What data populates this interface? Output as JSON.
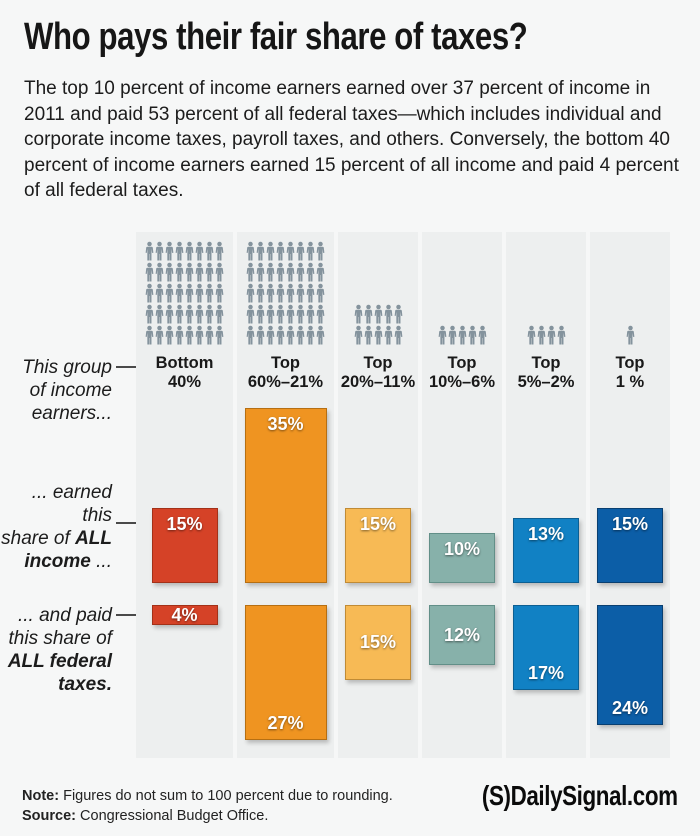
{
  "header": {
    "title": "Who pays their fair share of taxes?",
    "intro": "The top 10 percent of income earners earned over 37 percent of income in 2011 and paid 53 percent of all federal taxes—which includes individual and corporate income taxes, payroll taxes, and others. Conversely, the bottom 40 percent of income earners earned 15 percent of all income and paid 4 percent of all federal taxes."
  },
  "annotations": {
    "group": {
      "line1": "This group",
      "line2": "of income",
      "line3": "earners..."
    },
    "earned": {
      "line1": "... earned this",
      "line2_pre": "share of ",
      "line2_bold": "ALL",
      "line3_bold": "income",
      "line3_post": " ..."
    },
    "paid": {
      "line1": "... and paid",
      "line2": "this share of",
      "line3_bold": "ALL federal",
      "line4_bold": "taxes."
    }
  },
  "chart_data": {
    "type": "bar",
    "title": "Share of income earned vs. share of federal taxes paid, by income group",
    "categories": [
      "Bottom 40%",
      "Top 60%–21%",
      "Top 20%–11%",
      "Top 10%–6%",
      "Top 5%–2%",
      "Top 1 %"
    ],
    "series": [
      {
        "name": "Earned this share of ALL income",
        "values": [
          15,
          35,
          15,
          10,
          13,
          15
        ]
      },
      {
        "name": "Paid this share of ALL federal taxes",
        "values": [
          4,
          27,
          15,
          12,
          17,
          24
        ]
      }
    ],
    "people_counts": [
      40,
      40,
      10,
      5,
      4,
      1
    ],
    "people_color": "#84939d",
    "columns": [
      {
        "group": "Bottom",
        "range": "40%",
        "people": 40,
        "rows": [
          8,
          8,
          8,
          8,
          8
        ],
        "income_pct": 15,
        "income_label": "15%",
        "income_label_pos": "top",
        "tax_pct": 4,
        "tax_label": "4%",
        "tax_label_pos": "center",
        "fill": "#d54227",
        "border": "#a33118"
      },
      {
        "group": "Top",
        "range": "60%–21%",
        "people": 40,
        "rows": [
          8,
          8,
          8,
          8,
          8
        ],
        "income_pct": 35,
        "income_label": "35%",
        "income_label_pos": "top",
        "tax_pct": 27,
        "tax_label": "27%",
        "tax_label_pos": "bottom",
        "fill": "#ef9421",
        "border": "#b66f12"
      },
      {
        "group": "Top",
        "range": "20%–11%",
        "people": 10,
        "rows": [
          5,
          5
        ],
        "income_pct": 15,
        "income_label": "15%",
        "income_label_pos": "top",
        "tax_pct": 15,
        "tax_label": "15%",
        "tax_label_pos": "center",
        "fill": "#f7ba55",
        "border": "#c08b35"
      },
      {
        "group": "Top",
        "range": "10%–6%",
        "people": 5,
        "rows": [
          5
        ],
        "income_pct": 10,
        "income_label": "10%",
        "income_label_pos": "top",
        "tax_pct": 12,
        "tax_label": "12%",
        "tax_label_pos": "center",
        "fill": "#87b1aa",
        "border": "#628f88"
      },
      {
        "group": "Top",
        "range": "5%–2%",
        "people": 4,
        "rows": [
          4
        ],
        "income_pct": 13,
        "income_label": "13%",
        "income_label_pos": "top",
        "tax_pct": 17,
        "tax_label": "17%",
        "tax_label_pos": "bottom",
        "fill": "#1181c4",
        "border": "#0c5f92"
      },
      {
        "group": "Top",
        "range": "1 %",
        "people": 1,
        "rows": [
          1
        ],
        "income_pct": 15,
        "income_label": "15%",
        "income_label_pos": "top",
        "tax_pct": 24,
        "tax_label": "24%",
        "tax_label_pos": "bottom",
        "fill": "#0c5ea7",
        "border": "#093f70"
      }
    ],
    "layout_hints": {
      "pictogram": true,
      "income_bars_bottom_aligned": true,
      "tax_bars_top_aligned": true,
      "grid": false,
      "legend": "left-side italic annotations"
    }
  },
  "footer": {
    "note_label": "Note:",
    "note_text": " Figures do not sum to 100 percent due to rounding.",
    "source_label": "Source:",
    "source_text": " Congressional Budget Office.",
    "logo": "(S)DailySignal.com"
  }
}
